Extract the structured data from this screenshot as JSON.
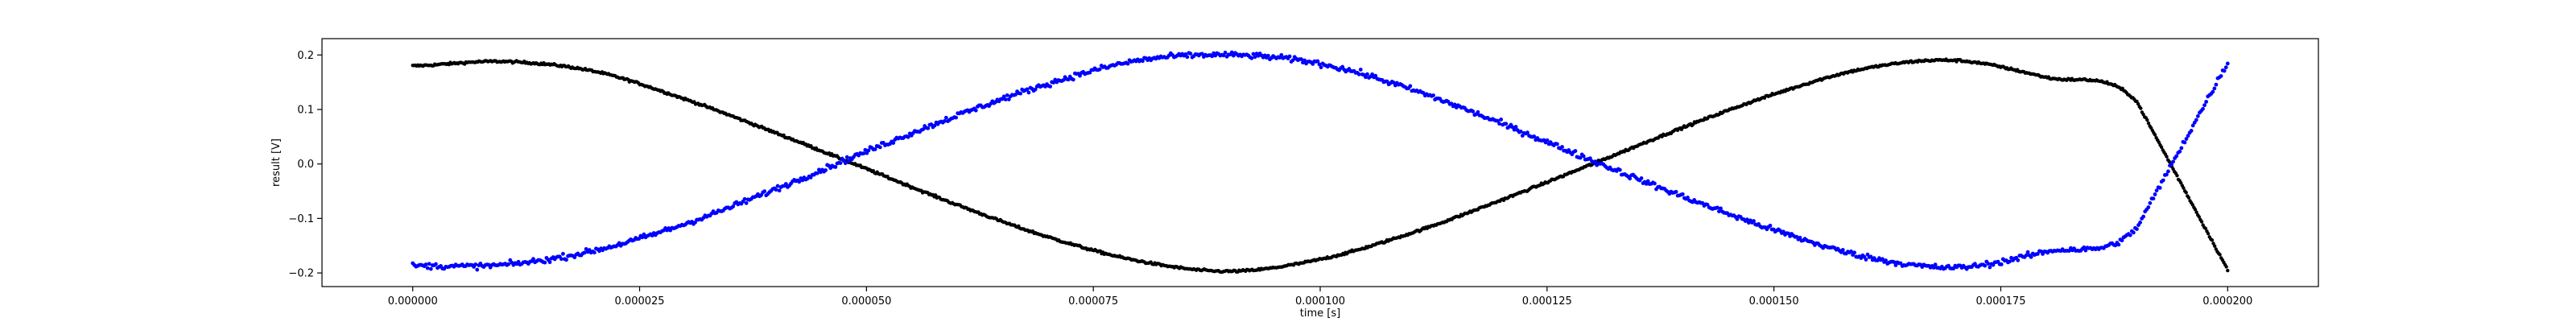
{
  "chart_data": {
    "type": "scatter",
    "xlabel": "time [s]",
    "ylabel": "result [V]",
    "xlim": [
      -1e-05,
      0.00021
    ],
    "ylim": [
      -0.225,
      0.23
    ],
    "x_ticks": [
      0,
      2.5e-05,
      5e-05,
      7.5e-05,
      0.0001,
      0.000125,
      0.00015,
      0.000175,
      0.0002
    ],
    "x_tick_labels": [
      "0.000000",
      "0.000025",
      "0.000050",
      "0.000075",
      "0.000100",
      "0.000125",
      "0.000150",
      "0.000175",
      "0.000200"
    ],
    "y_ticks": [
      -0.2,
      -0.1,
      0.0,
      0.1,
      0.2
    ],
    "y_tick_labels": [
      "−0.2",
      "−0.1",
      "0.0",
      "0.1",
      "0.2"
    ],
    "grid": false,
    "series": [
      {
        "color": "#000000",
        "marker_size": 2.2,
        "noise": 0.002,
        "points": 1400,
        "x": [
          0,
          1e-05,
          2e-05,
          3e-05,
          4e-05,
          5e-05,
          6e-05,
          7e-05,
          8e-05,
          9e-05,
          0.0001,
          0.00011,
          0.00012,
          0.00013,
          0.00014,
          0.00015,
          0.00016,
          0.00017,
          0.00018,
          0.00019,
          0.0002
        ],
        "y": [
          0.18,
          0.188,
          0.17,
          0.119,
          0.057,
          -0.009,
          -0.075,
          -0.134,
          -0.178,
          -0.197,
          -0.175,
          -0.127,
          -0.066,
          0.0,
          0.067,
          0.128,
          0.175,
          0.19,
          0.159,
          0.114,
          -0.194
        ]
      },
      {
        "color": "#0000ff",
        "marker_size": 2.4,
        "noise": 0.005,
        "points": 1100,
        "x": [
          0,
          1e-05,
          2e-05,
          3e-05,
          4e-05,
          5e-05,
          6e-05,
          7e-05,
          8e-05,
          9e-05,
          0.0001,
          0.00011,
          0.00012,
          0.00013,
          0.00014,
          0.00015,
          0.00016,
          0.00017,
          0.00018,
          0.00019,
          0.0002
        ],
        "y": [
          -0.187,
          -0.185,
          -0.159,
          -0.11,
          -0.046,
          0.023,
          0.089,
          0.147,
          0.19,
          0.2,
          0.184,
          0.137,
          0.074,
          0.006,
          -0.06,
          -0.121,
          -0.17,
          -0.19,
          -0.161,
          -0.117,
          0.186
        ]
      }
    ]
  }
}
